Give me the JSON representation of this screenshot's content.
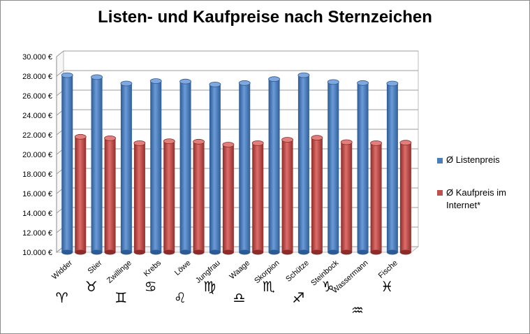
{
  "chart_data": {
    "type": "bar",
    "title": "Listen- und Kaufpreise nach Sternzeichen",
    "xlabel": "",
    "ylabel": "",
    "categories": [
      "Widder",
      "Stier",
      "Zwillinge",
      "Krebs",
      "Löwe",
      "Jungfrau",
      "Waage",
      "Skorpion",
      "Schütze",
      "Steinbock",
      "Wassermann",
      "Fische"
    ],
    "category_symbols": [
      "♈",
      "♉",
      "♊",
      "♋",
      "♌",
      "♍",
      "♎",
      "♏",
      "♐",
      "♑",
      "♒",
      "♓"
    ],
    "series": [
      {
        "name": "Ø Listenpreis",
        "color": "#4a7ebb",
        "values": [
          28100,
          27900,
          27250,
          27500,
          27450,
          27150,
          27300,
          27700,
          28100,
          27400,
          27300,
          27250
        ]
      },
      {
        "name": "Ø Kaufpreis im Internet*",
        "color": "#c0504d",
        "values": [
          21800,
          21650,
          21150,
          21350,
          21300,
          21000,
          21150,
          21500,
          21700,
          21250,
          21150,
          21200
        ]
      }
    ],
    "ylim": [
      10000,
      30000
    ],
    "yticks": [
      "10.000 €",
      "12.000 €",
      "14.000 €",
      "16.000 €",
      "18.000 €",
      "20.000 €",
      "22.000 €",
      "24.000 €",
      "26.000 €",
      "28.000 €",
      "30.000 €"
    ],
    "grid": true,
    "legend_position": "right"
  }
}
